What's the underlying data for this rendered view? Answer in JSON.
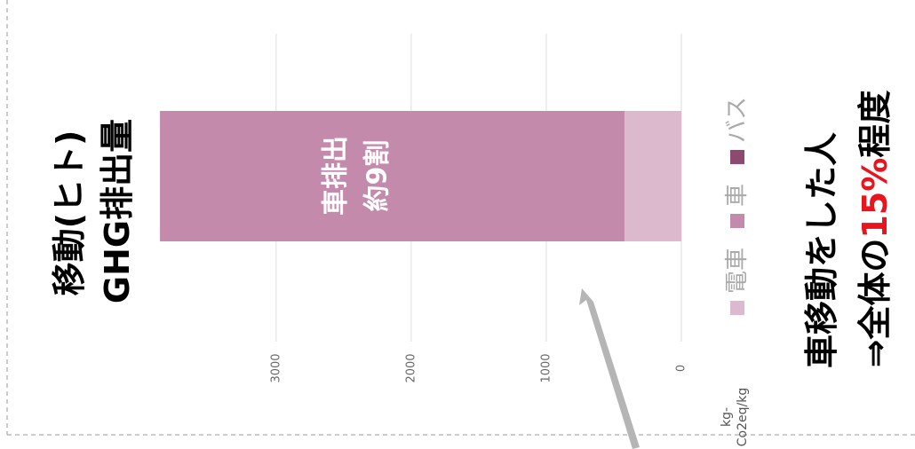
{
  "chart_data": {
    "type": "bar",
    "stacked": true,
    "title": [
      "移動(ヒト)",
      "GHG排出量"
    ],
    "categories": [
      null
    ],
    "series": [
      {
        "name": "電車",
        "color": "#dcb9cc",
        "values": [
          420
        ]
      },
      {
        "name": "車",
        "color": "#c48aab",
        "values": [
          3440
        ]
      },
      {
        "name": "バス",
        "color": "#8d4a70",
        "values": [
          0
        ]
      }
    ],
    "ylim": [
      0,
      3900
    ],
    "yticks": [
      0,
      1000,
      2000,
      3000
    ],
    "grid": true,
    "unit": [
      "kg-",
      "Co2eq/kg"
    ],
    "bar_label": [
      "車排出",
      "約9割"
    ],
    "note": [
      "車移動をした人",
      "⇒全体の",
      "15%",
      "程度"
    ]
  }
}
